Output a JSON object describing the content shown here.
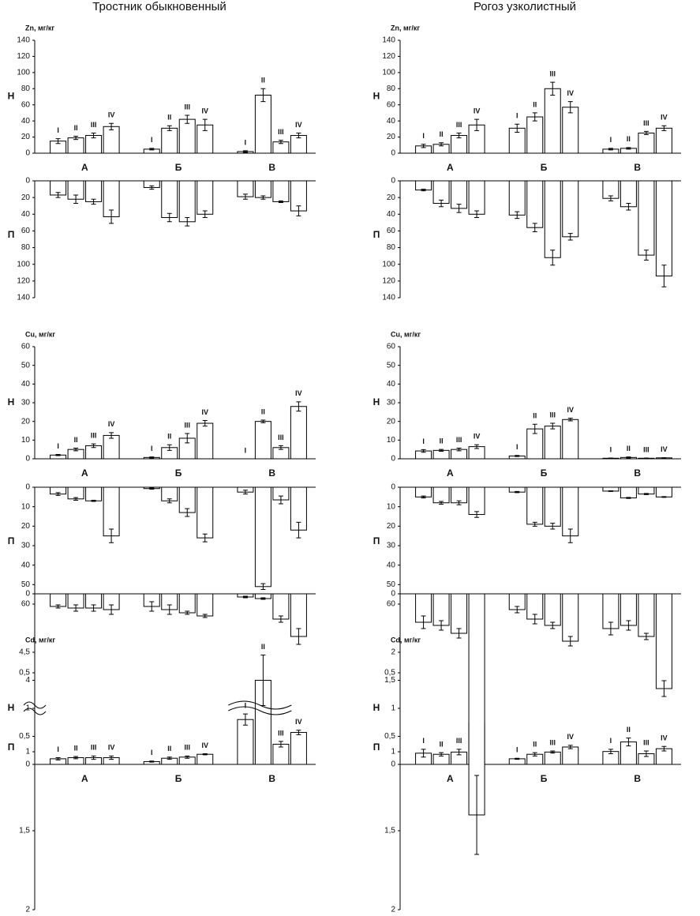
{
  "chart_data": [
    {
      "type": "bar",
      "title": "Тростник обыкновенный",
      "element_label": "Zn, мг/кг",
      "side_label": "Н",
      "groups": [
        "А",
        "Б",
        "В"
      ],
      "categories": [
        "I",
        "II",
        "III",
        "IV",
        "I",
        "II",
        "III",
        "IV",
        "I",
        "II",
        "III",
        "IV"
      ],
      "values": [
        15,
        19,
        22,
        33,
        5,
        31,
        42,
        35,
        2,
        72,
        14,
        22
      ],
      "errors": [
        3,
        2,
        3,
        4,
        1,
        3,
        5,
        7,
        1,
        8,
        2,
        3
      ],
      "color": "#ffffff",
      "ylim": [
        0,
        140
      ],
      "yticks": [
        0,
        20,
        40,
        60,
        80,
        100,
        120,
        140
      ]
    },
    {
      "type": "bar",
      "side_label": "П",
      "inverted": true,
      "values": [
        17,
        22,
        25,
        43,
        8,
        44,
        49,
        40,
        19,
        20,
        25,
        36
      ],
      "errors": [
        3,
        5,
        3,
        8,
        2,
        5,
        5,
        4,
        3,
        2,
        1,
        6
      ],
      "color": "#ffffff",
      "ylim": [
        0,
        140
      ],
      "yticks": [
        0,
        20,
        40,
        60,
        80,
        100,
        120,
        140
      ]
    },
    {
      "type": "bar",
      "element_label": "Cu, мг/кг",
      "side_label": "Н",
      "groups": [
        "А",
        "Б",
        "В"
      ],
      "categories": [
        "I",
        "II",
        "III",
        "IV",
        "I",
        "II",
        "III",
        "IV",
        "I",
        "II",
        "III",
        "IV"
      ],
      "values": [
        2,
        5,
        7,
        12.5,
        0.7,
        6,
        11,
        19,
        0,
        20,
        6,
        28
      ],
      "errors": [
        0.3,
        0.7,
        1,
        1.5,
        0.3,
        1.5,
        2.5,
        1.5,
        0,
        0.7,
        1,
        2.5
      ],
      "color": "#ffffff",
      "ylim": [
        0,
        60
      ],
      "yticks": [
        0,
        10,
        20,
        30,
        40,
        50,
        60
      ]
    },
    {
      "type": "bar",
      "side_label": "П",
      "inverted": true,
      "values": [
        3.5,
        6,
        7,
        25,
        0.7,
        7,
        13,
        26,
        2.5,
        51,
        6.5,
        22
      ],
      "errors": [
        0.7,
        0.7,
        0.3,
        3.5,
        0.3,
        1,
        2,
        2,
        1,
        1.5,
        2,
        4
      ],
      "color": "#ffffff",
      "ylim": [
        0,
        60
      ],
      "yticks": [
        0,
        10,
        20,
        30,
        40,
        50,
        60
      ]
    },
    {
      "type": "bar",
      "element_label": "Cd, мг/кг",
      "side_label": "Н",
      "groups": [
        "А",
        "Б",
        "В"
      ],
      "categories": [
        "I",
        "II",
        "III",
        "IV",
        "I",
        "II",
        "III",
        "IV",
        "I",
        "II",
        "III",
        "IV"
      ],
      "values": [
        0.1,
        0.12,
        0.12,
        0.12,
        0.05,
        0.11,
        0.13,
        0.18,
        0.8,
        4.0,
        0.36,
        0.57
      ],
      "errors": [
        0.02,
        0.02,
        0.03,
        0.03,
        0.01,
        0.02,
        0.02,
        0.01,
        0.1,
        0.45,
        0.05,
        0.04
      ],
      "color": "#ffffff",
      "ylim": [
        0,
        4.5
      ],
      "axis_break": [
        1,
        3.5
      ],
      "yticks": [
        0,
        {
          "value": 0.5,
          "label": "0,5"
        },
        1,
        4,
        {
          "value": 4.5,
          "label": "4,5"
        }
      ]
    },
    {
      "type": "bar",
      "side_label": "П",
      "inverted": true,
      "values": [
        0.08,
        0.09,
        0.09,
        0.1,
        0.08,
        0.1,
        0.12,
        0.14,
        0.02,
        0.03,
        0.16,
        0.27
      ],
      "errors": [
        0.01,
        0.02,
        0.02,
        0.03,
        0.03,
        0.03,
        0.01,
        0.01,
        0.005,
        0.005,
        0.02,
        0.05
      ],
      "color": "#ffffff",
      "ylim": [
        0,
        2
      ],
      "yticks": [
        0,
        {
          "value": 0.5,
          "label": "0,5"
        },
        1,
        {
          "value": 1.5,
          "label": "1,5"
        },
        2
      ]
    },
    {
      "type": "bar",
      "title": "Рогоз узколистный",
      "element_label": "Zn, мг/кг",
      "side_label": "Н",
      "groups": [
        "А",
        "Б",
        "В"
      ],
      "categories": [
        "I",
        "II",
        "III",
        "IV",
        "I",
        "II",
        "III",
        "IV",
        "I",
        "II",
        "III",
        "IV"
      ],
      "values": [
        9,
        11,
        22,
        35,
        31,
        45,
        80,
        57,
        5,
        6,
        25,
        31
      ],
      "errors": [
        2,
        2,
        3,
        7,
        5,
        5,
        8,
        7,
        1,
        1,
        2,
        3
      ],
      "color": "#ffffff",
      "ylim": [
        0,
        140
      ],
      "yticks": [
        0,
        20,
        40,
        60,
        80,
        100,
        120,
        140
      ]
    },
    {
      "type": "bar",
      "side_label": "П",
      "inverted": true,
      "values": [
        11,
        27,
        33,
        40,
        41,
        56,
        92,
        67,
        21,
        31,
        89,
        114
      ],
      "errors": [
        1,
        4,
        5,
        4,
        4,
        5,
        9,
        4,
        3,
        4,
        6,
        13
      ],
      "color": "#ffffff",
      "ylim": [
        0,
        140
      ],
      "yticks": [
        0,
        20,
        40,
        60,
        80,
        100,
        120,
        140
      ]
    },
    {
      "type": "bar",
      "element_label": "Cu, мг/кг",
      "side_label": "Н",
      "groups": [
        "А",
        "Б",
        "В"
      ],
      "categories": [
        "I",
        "II",
        "III",
        "IV",
        "I",
        "II",
        "III",
        "IV",
        "I",
        "II",
        "III",
        "IV"
      ],
      "values": [
        4.2,
        4.5,
        5,
        6.5,
        1.5,
        16,
        17.5,
        21,
        0.3,
        0.7,
        0.3,
        0.5
      ],
      "errors": [
        0.7,
        0.5,
        0.7,
        1,
        0.3,
        2.5,
        1.5,
        0.7,
        0.1,
        0.3,
        0.1,
        0.1
      ],
      "color": "#ffffff",
      "ylim": [
        0,
        60
      ],
      "yticks": [
        0,
        10,
        20,
        30,
        40,
        50,
        60
      ]
    },
    {
      "type": "bar",
      "side_label": "П",
      "inverted": true,
      "values": [
        5,
        8,
        8,
        14,
        2.5,
        19,
        20,
        25,
        2,
        5.5,
        3.5,
        5
      ],
      "errors": [
        0.5,
        0.7,
        1,
        1.5,
        0.3,
        1,
        1.5,
        3.5,
        0.2,
        0.3,
        0.3,
        0.2
      ],
      "color": "#ffffff",
      "ylim": [
        0,
        60
      ],
      "yticks": [
        0,
        10,
        20,
        30,
        40,
        50,
        60
      ]
    },
    {
      "type": "bar",
      "element_label": "Cd, мг/кг",
      "side_label": "Н",
      "groups": [
        "А",
        "Б",
        "В"
      ],
      "categories": [
        "I",
        "II",
        "III",
        "IV",
        "I",
        "II",
        "III",
        "IV",
        "I",
        "II",
        "III",
        "IV"
      ],
      "values": [
        0.2,
        0.18,
        0.22,
        0.74,
        0.1,
        0.18,
        0.22,
        0.31,
        0.23,
        0.4,
        0.19,
        0.28
      ],
      "errors": [
        0.07,
        0.03,
        0.05,
        0.15,
        0.01,
        0.03,
        0.02,
        0.03,
        0.04,
        0.07,
        0.05,
        0.04
      ],
      "color": "#ffffff",
      "ylim": [
        0,
        2
      ],
      "yticks": [
        0,
        {
          "value": 0.5,
          "label": "0,5"
        },
        1,
        {
          "value": 1.5,
          "label": "1,5"
        },
        2
      ]
    },
    {
      "type": "bar",
      "side_label": "П",
      "inverted": true,
      "values": [
        0.18,
        0.2,
        0.25,
        1.4,
        0.1,
        0.16,
        0.2,
        0.3,
        0.22,
        0.2,
        0.27,
        0.6
      ],
      "errors": [
        0.04,
        0.03,
        0.03,
        0.25,
        0.02,
        0.03,
        0.02,
        0.03,
        0.04,
        0.03,
        0.02,
        0.05
      ],
      "color": "#ffffff",
      "ylim": [
        0,
        2
      ],
      "yticks": [
        0,
        {
          "value": 0.5,
          "label": "0,5"
        },
        1,
        {
          "value": 1.5,
          "label": "1,5"
        },
        2
      ]
    }
  ]
}
